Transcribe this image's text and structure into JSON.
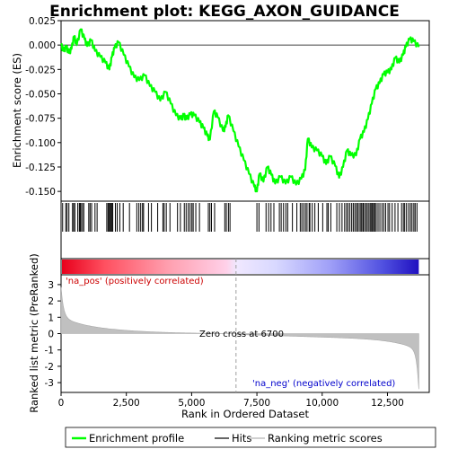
{
  "title": "Enrichment plot: KEGG_AXON_GUIDANCE",
  "chart_data": {
    "type": "line",
    "title": "Enrichment plot: KEGG_AXON_GUIDANCE",
    "xlabel": "Rank in Ordered Dataset",
    "ylabel_es": "Enrichment score (ES)",
    "ylabel_metric": "Ranked list metric (PreRanked)",
    "xlim": [
      0,
      14100
    ],
    "x_ticks": [
      0,
      2500,
      5000,
      7500,
      10000,
      12500
    ],
    "es_ylim": [
      -0.16,
      0.025
    ],
    "es_ticks": [
      0.025,
      0.0,
      -0.025,
      -0.05,
      -0.075,
      -0.1,
      -0.125,
      -0.15
    ],
    "es_tick_labels": [
      "0.025",
      "0.000",
      "-0.025",
      "-0.050",
      "-0.075",
      "-0.100",
      "-0.125",
      "-0.150"
    ],
    "metric_ylim": [
      -3.6,
      3.6
    ],
    "metric_ticks": [
      3,
      2,
      1,
      0,
      -1,
      -2,
      -3
    ],
    "zero_cross_rank": 6700,
    "zero_cross_label": "Zero cross at 6700",
    "pos_label": "'na_pos' (positively correlated)",
    "neg_label": "'na_neg' (negatively correlated)",
    "legend": [
      "Enrichment profile",
      "Hits",
      "Ranking metric scores"
    ],
    "colors": {
      "profile": "#00ff00",
      "hits": "#000000",
      "metric_fill": "#c0c0c0",
      "pos_text": "#cc0000",
      "neg_text": "#0000cc",
      "zero_line": "#a0a0a0"
    },
    "es_profile": [
      [
        0,
        0.0
      ],
      [
        100,
        -0.006
      ],
      [
        200,
        -0.002
      ],
      [
        300,
        -0.008
      ],
      [
        400,
        -0.004
      ],
      [
        500,
        0.009
      ],
      [
        600,
        0.0
      ],
      [
        750,
        0.016
      ],
      [
        900,
        0.006
      ],
      [
        1000,
        -0.001
      ],
      [
        1150,
        0.005
      ],
      [
        1300,
        -0.006
      ],
      [
        1500,
        -0.012
      ],
      [
        1700,
        -0.018
      ],
      [
        1850,
        -0.025
      ],
      [
        1950,
        -0.012
      ],
      [
        2050,
        -0.003
      ],
      [
        2200,
        0.003
      ],
      [
        2400,
        -0.01
      ],
      [
        2600,
        -0.022
      ],
      [
        2800,
        -0.033
      ],
      [
        3000,
        -0.036
      ],
      [
        3200,
        -0.031
      ],
      [
        3400,
        -0.042
      ],
      [
        3600,
        -0.048
      ],
      [
        3800,
        -0.057
      ],
      [
        4000,
        -0.048
      ],
      [
        4200,
        -0.06
      ],
      [
        4400,
        -0.072
      ],
      [
        4600,
        -0.076
      ],
      [
        4700,
        -0.072
      ],
      [
        4800,
        -0.076
      ],
      [
        4950,
        -0.071
      ],
      [
        5100,
        -0.072
      ],
      [
        5300,
        -0.079
      ],
      [
        5450,
        -0.085
      ],
      [
        5600,
        -0.093
      ],
      [
        5700,
        -0.097
      ],
      [
        5850,
        -0.068
      ],
      [
        6000,
        -0.074
      ],
      [
        6200,
        -0.088
      ],
      [
        6300,
        -0.084
      ],
      [
        6400,
        -0.072
      ],
      [
        6600,
        -0.088
      ],
      [
        6800,
        -0.104
      ],
      [
        7000,
        -0.118
      ],
      [
        7200,
        -0.132
      ],
      [
        7400,
        -0.145
      ],
      [
        7500,
        -0.15
      ],
      [
        7600,
        -0.132
      ],
      [
        7750,
        -0.14
      ],
      [
        7900,
        -0.125
      ],
      [
        8050,
        -0.133
      ],
      [
        8200,
        -0.142
      ],
      [
        8400,
        -0.135
      ],
      [
        8600,
        -0.142
      ],
      [
        8800,
        -0.135
      ],
      [
        9000,
        -0.143
      ],
      [
        9200,
        -0.137
      ],
      [
        9350,
        -0.128
      ],
      [
        9450,
        -0.096
      ],
      [
        9600,
        -0.105
      ],
      [
        9800,
        -0.108
      ],
      [
        10000,
        -0.114
      ],
      [
        10150,
        -0.122
      ],
      [
        10300,
        -0.114
      ],
      [
        10500,
        -0.124
      ],
      [
        10650,
        -0.136
      ],
      [
        10800,
        -0.125
      ],
      [
        10950,
        -0.108
      ],
      [
        11100,
        -0.113
      ],
      [
        11300,
        -0.113
      ],
      [
        11450,
        -0.096
      ],
      [
        11600,
        -0.089
      ],
      [
        11750,
        -0.076
      ],
      [
        11900,
        -0.06
      ],
      [
        12050,
        -0.045
      ],
      [
        12200,
        -0.039
      ],
      [
        12350,
        -0.03
      ],
      [
        12500,
        -0.028
      ],
      [
        12650,
        -0.025
      ],
      [
        12800,
        -0.013
      ],
      [
        12950,
        -0.018
      ],
      [
        13100,
        -0.01
      ],
      [
        13200,
        -0.002
      ],
      [
        13350,
        0.006
      ],
      [
        13500,
        0.004
      ],
      [
        13700,
        -0.002
      ]
    ],
    "hit_ranks": [
      60,
      180,
      230,
      300,
      440,
      480,
      530,
      640,
      700,
      730,
      760,
      820,
      870,
      1060,
      1110,
      1170,
      1300,
      1380,
      1750,
      1800,
      1830,
      1870,
      1900,
      1940,
      1980,
      2080,
      2150,
      2250,
      2380,
      2620,
      2900,
      2980,
      3050,
      3120,
      3160,
      3350,
      3460,
      3700,
      3900,
      3950,
      4030,
      4170,
      4460,
      4570,
      4720,
      4790,
      4870,
      4940,
      5010,
      5060,
      5160,
      5300,
      5640,
      5700,
      5760,
      5880,
      6270,
      6330,
      6410,
      6470,
      7500,
      7580,
      7850,
      7950,
      8040,
      8150,
      8360,
      8430,
      8520,
      8610,
      8680,
      8860,
      9030,
      9160,
      9220,
      9290,
      9360,
      9420,
      9500,
      9530,
      9620,
      9720,
      9850,
      10020,
      10180,
      10230,
      10330,
      10560,
      10660,
      10760,
      10860,
      10930,
      10990,
      11060,
      11130,
      11190,
      11250,
      11310,
      11360,
      11420,
      11480,
      11520,
      11570,
      11620,
      11680,
      11730,
      11790,
      11840,
      11890,
      11930,
      11970,
      12020,
      12070,
      12140,
      12210,
      12290,
      12360,
      12430,
      12520,
      12580,
      12680,
      12790,
      12900,
      13040,
      13110,
      13160,
      13230,
      13310,
      13380,
      13440,
      13510,
      13560,
      13630
    ]
  }
}
